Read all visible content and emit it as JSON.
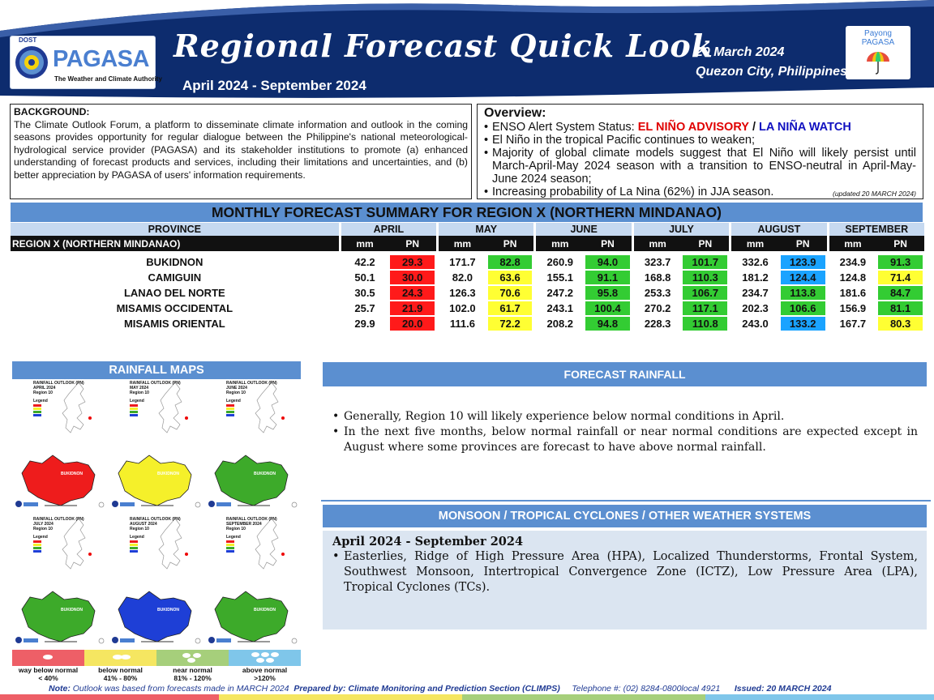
{
  "header": {
    "agency_small": "DOST",
    "agency": "PAGASA",
    "agency_tagline": "The Weather and Climate Authority",
    "title": "Regional Forecast Quick Look",
    "period": "April 2024 - September 2024",
    "date": "20 March 2024",
    "place": "Quezon City, Philippines",
    "payong_1": "Payong",
    "payong_2": "PAGASA"
  },
  "background": {
    "label": "BACKGROUND:",
    "text": "The Climate Outlook Forum, a platform to disseminate climate information and outlook in the coming seasons provides opportunity for regular dialogue between the Philippine's national meteorological-hydrological service provider (PAGASA) and its stakeholder institutions to promote (a) enhanced understanding of forecast products and services, including their limitations and uncertainties, and (b) better appreciation by PAGASA of users' information requirements."
  },
  "overview": {
    "title": "Overview:",
    "enso_prefix": "ENSO Alert System Status:",
    "enso_advisory": "EL NIÑO ADVISORY",
    "enso_sep": "/",
    "enso_watch": "LA NIÑA WATCH",
    "bullet_2": "El Niño in the tropical Pacific continues to weaken;",
    "bullet_3": "Majority of global climate models suggest that El Niño will likely persist until March-April-May 2024 season with a transition to ENSO-neutral in April-May-June 2024 season;",
    "bullet_4": "Increasing probability of La Nina (62%) in JJA season.",
    "updated": "(updated 20 MARCH 2024)"
  },
  "colors": {
    "red": "#ff1a1a",
    "yellow": "#ffff33",
    "green": "#33cc33",
    "blue": "#1aa3ff",
    "header_blue": "#0d2c6e",
    "section_blue": "#5b8fd0"
  },
  "table": {
    "title": "MONTHLY FORECAST SUMMARY FOR REGION X (NORTHERN MINDANAO)",
    "province_header": "PROVINCE",
    "region_label": "REGION X (NORTHERN MINDANAO)",
    "months": [
      "APRIL",
      "MAY",
      "JUNE",
      "JULY",
      "AUGUST",
      "SEPTEMBER"
    ],
    "mm_label": "mm",
    "pn_label": "PN",
    "rows": [
      {
        "name": "BUKIDNON",
        "cells": [
          [
            "42.2",
            "29.3",
            "red"
          ],
          [
            "171.7",
            "82.8",
            "green"
          ],
          [
            "260.9",
            "94.0",
            "green"
          ],
          [
            "323.7",
            "101.7",
            "green"
          ],
          [
            "332.6",
            "123.9",
            "blue"
          ],
          [
            "234.9",
            "91.3",
            "green"
          ]
        ]
      },
      {
        "name": "CAMIGUIN",
        "cells": [
          [
            "50.1",
            "30.0",
            "red"
          ],
          [
            "82.0",
            "63.6",
            "yellow"
          ],
          [
            "155.1",
            "91.1",
            "green"
          ],
          [
            "168.8",
            "110.3",
            "green"
          ],
          [
            "181.2",
            "124.4",
            "blue"
          ],
          [
            "124.8",
            "71.4",
            "yellow"
          ]
        ]
      },
      {
        "name": "LANAO DEL NORTE",
        "cells": [
          [
            "30.5",
            "24.3",
            "red"
          ],
          [
            "126.3",
            "70.6",
            "yellow"
          ],
          [
            "247.2",
            "95.8",
            "green"
          ],
          [
            "253.3",
            "106.7",
            "green"
          ],
          [
            "234.7",
            "113.8",
            "green"
          ],
          [
            "181.6",
            "84.7",
            "green"
          ]
        ]
      },
      {
        "name": "MISAMIS OCCIDENTAL",
        "cells": [
          [
            "25.7",
            "21.9",
            "red"
          ],
          [
            "102.0",
            "61.7",
            "yellow"
          ],
          [
            "243.1",
            "100.4",
            "green"
          ],
          [
            "270.2",
            "117.1",
            "green"
          ],
          [
            "202.3",
            "106.6",
            "green"
          ],
          [
            "156.9",
            "81.1",
            "green"
          ]
        ]
      },
      {
        "name": "MISAMIS ORIENTAL",
        "cells": [
          [
            "29.9",
            "20.0",
            "red"
          ],
          [
            "111.6",
            "72.2",
            "yellow"
          ],
          [
            "208.2",
            "94.8",
            "green"
          ],
          [
            "228.3",
            "110.8",
            "green"
          ],
          [
            "243.0",
            "133.2",
            "blue"
          ],
          [
            "167.7",
            "80.3",
            "yellow"
          ]
        ]
      }
    ]
  },
  "maps": {
    "title": "RAINFALL MAPS",
    "panels": [
      {
        "title": "RAINFALL OUTLOOK (PN)",
        "month": "APRIL 2024",
        "region": "Region 10",
        "fill": "red"
      },
      {
        "title": "RAINFALL OUTLOOK (PN)",
        "month": "MAY 2024",
        "region": "Region 10",
        "fill": "yellow"
      },
      {
        "title": "RAINFALL OUTLOOK (PN)",
        "month": "JUNE 2024",
        "region": "Region 10",
        "fill": "green"
      },
      {
        "title": "RAINFALL OUTLOOK (PN)",
        "month": "JULY 2024",
        "region": "Region 10",
        "fill": "green"
      },
      {
        "title": "RAINFALL OUTLOOK (PN)",
        "month": "AUGUST 2024",
        "region": "Region 10",
        "fill": "blue"
      },
      {
        "title": "RAINFALL OUTLOOK (PN)",
        "month": "SEPTEMBER 2024",
        "region": "Region 10",
        "fill": "green"
      }
    ],
    "legend_word": "Legend",
    "legend": [
      {
        "label": "way below normal",
        "range": "< 40%",
        "color": "#ee5f67"
      },
      {
        "label": "below normal",
        "range": "41%  -  80%",
        "color": "#f5e661"
      },
      {
        "label": "near normal",
        "range": "81% - 120%",
        "color": "#a6cf7b"
      },
      {
        "label": "above normal",
        "range": ">120%",
        "color": "#7fc6ea"
      }
    ]
  },
  "forecast_rainfall": {
    "title": "FORECAST RAINFALL",
    "bullets": [
      "Generally, Region 10 will likely experience below normal conditions in April.",
      "In the next five months, below normal rainfall or near normal conditions are expected except in August where some provinces are forecast to have above normal rainfall."
    ]
  },
  "monsoon": {
    "title": "MONSOON  /  TROPICAL CYCLONES / OTHER WEATHER SYSTEMS",
    "period": "April 2024 - September 2024",
    "bullet": "Easterlies, Ridge of High Pressure Area (HPA), Localized Thunderstorms, Frontal System, Southwest Monsoon, Intertropical Convergence Zone (ICTZ), Low Pressure Area (LPA), Tropical Cyclones (TCs)."
  },
  "footer": {
    "note_label": "Note:",
    "note": "Outlook was based from forecasts made in MARCH 2024",
    "prepared": "Prepared by: Climate Monitoring and Prediction Section (CLIMPS)",
    "telephone": "Telephone #: (02) 8284-0800local 4921",
    "issued": "Issued: 20 MARCH 2024"
  }
}
